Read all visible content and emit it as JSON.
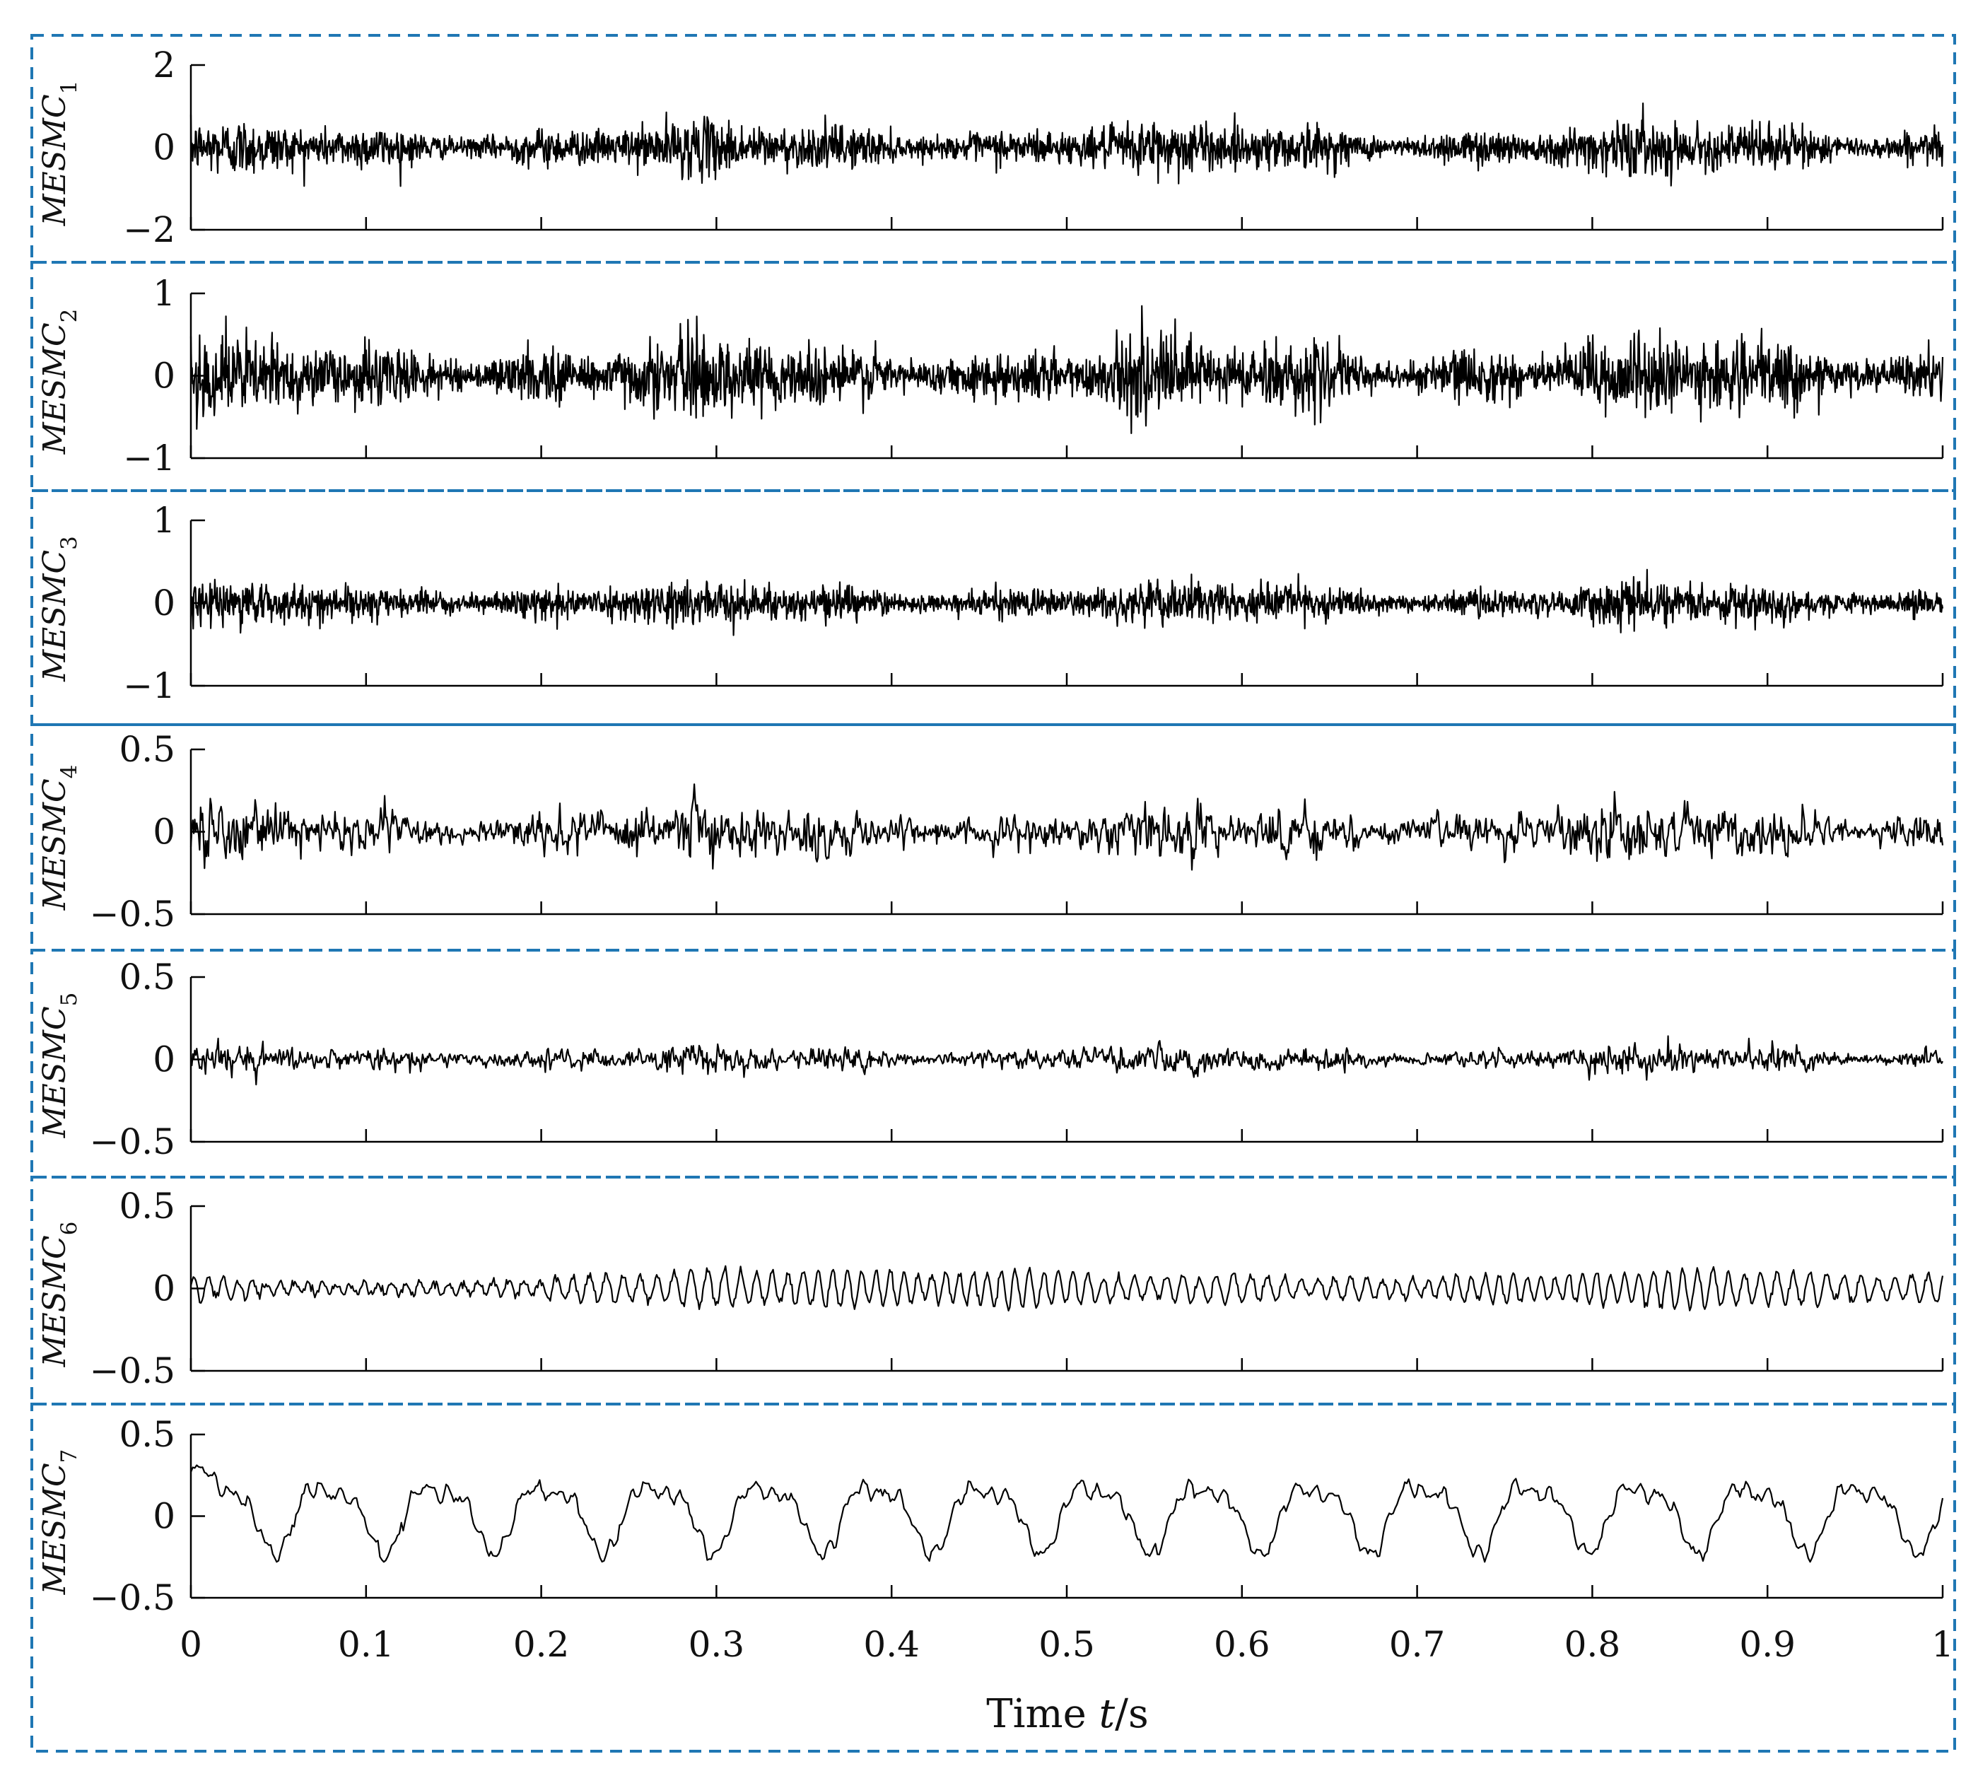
{
  "chart_data": {
    "type": "line",
    "layout": "7 vertically stacked panels sharing one time axis",
    "xlabel": {
      "prefix": "Time ",
      "variable": "t",
      "suffix": "/s"
    },
    "xlim": [
      0,
      1
    ],
    "xticks": [
      0,
      0.1,
      0.2,
      0.3,
      0.4,
      0.5,
      0.6,
      0.7,
      0.8,
      0.9,
      1
    ],
    "xtick_labels": [
      "0",
      "0.1",
      "0.2",
      "0.3",
      "0.4",
      "0.5",
      "0.6",
      "0.7",
      "0.8",
      "0.9",
      "1"
    ],
    "line_color": "#000000",
    "box_color": "#1f77b4",
    "box_style": "dashed",
    "grid": false,
    "panels": [
      {
        "label_main": "MESMC",
        "label_sub": "1",
        "ylim": [
          -2,
          2
        ],
        "yticks": [
          -2,
          0,
          2
        ],
        "ytick_labels": [
          "−2",
          "0",
          "2"
        ],
        "signal": {
          "kind": "broadband noise",
          "typical_amplitude": 0.55,
          "peak_amplitude": 1.5
        }
      },
      {
        "label_main": "MESMC",
        "label_sub": "2",
        "ylim": [
          -1,
          1
        ],
        "yticks": [
          -1,
          0,
          1
        ],
        "ytick_labels": [
          "−1",
          "0",
          "1"
        ],
        "signal": {
          "kind": "broadband noise",
          "typical_amplitude": 0.4,
          "peak_amplitude": 1.0
        }
      },
      {
        "label_main": "MESMC",
        "label_sub": "3",
        "ylim": [
          -1,
          1
        ],
        "yticks": [
          -1,
          0,
          1
        ],
        "ytick_labels": [
          "−1",
          "0",
          "1"
        ],
        "signal": {
          "kind": "broadband noise",
          "typical_amplitude": 0.22,
          "peak_amplitude": 0.6
        }
      },
      {
        "label_main": "MESMC",
        "label_sub": "4",
        "ylim": [
          -0.5,
          0.5
        ],
        "yticks": [
          -0.5,
          0,
          0.5
        ],
        "ytick_labels": [
          "−0.5",
          "0",
          "0.5"
        ],
        "signal": {
          "kind": "band-limited noise",
          "typical_amplitude": 0.13,
          "peak_amplitude": 0.42
        }
      },
      {
        "label_main": "MESMC",
        "label_sub": "5",
        "ylim": [
          -0.5,
          0.5
        ],
        "yticks": [
          -0.5,
          0,
          0.5
        ],
        "ytick_labels": [
          "−0.5",
          "0",
          "0.5"
        ],
        "signal": {
          "kind": "band-limited noise",
          "typical_amplitude": 0.07,
          "peak_amplitude": 0.25
        }
      },
      {
        "label_main": "MESMC",
        "label_sub": "6",
        "ylim": [
          -0.5,
          0.5
        ],
        "yticks": [
          -0.5,
          0,
          0.5
        ],
        "ytick_labels": [
          "−0.5",
          "0",
          "0.5"
        ],
        "signal": {
          "kind": "narrowband oscillation",
          "typical_amplitude": 0.1,
          "peak_amplitude": 0.28
        }
      },
      {
        "label_main": "MESMC",
        "label_sub": "7",
        "ylim": [
          -0.5,
          0.5
        ],
        "yticks": [
          -0.5,
          0,
          0.5
        ],
        "ytick_labels": [
          "−0.5",
          "0",
          "0.5"
        ],
        "signal": {
          "kind": "periodic, about 16 cycles",
          "cycles": 16,
          "max_value": 0.35,
          "min_value": -0.28,
          "start_value": 0.27
        }
      }
    ]
  }
}
